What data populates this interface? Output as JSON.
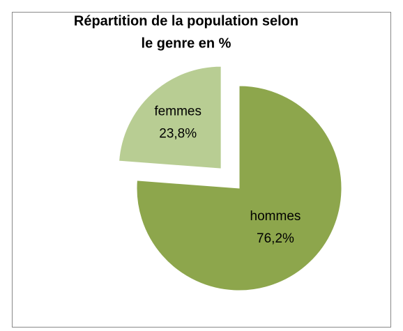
{
  "chart_data": {
    "type": "pie",
    "title": [
      "Répartition de la population selon",
      "le genre en %"
    ],
    "categories": [
      "hommes",
      "femmes"
    ],
    "values": [
      76.2,
      23.8
    ],
    "value_labels": [
      "76,2%",
      "23,8%"
    ],
    "colors": [
      "#8da64c",
      "#b8cd93"
    ],
    "exploded": [
      false,
      true
    ]
  }
}
